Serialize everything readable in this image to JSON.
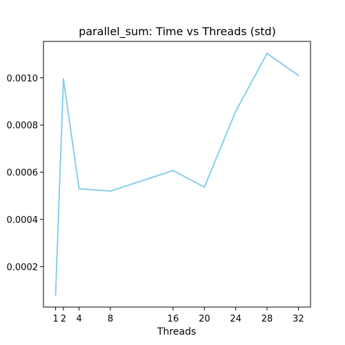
{
  "chart_data": {
    "type": "line",
    "title": "parallel_sum: Time vs Threads (std)",
    "xlabel": "Threads",
    "ylabel": "",
    "grid": false,
    "x": [
      1,
      2,
      4,
      8,
      16,
      20,
      24,
      28,
      32
    ],
    "series": [
      {
        "values": [
          8e-05,
          0.000995,
          0.00053,
          0.00052,
          0.000607,
          0.000537,
          0.000858,
          0.001103,
          0.00101
        ]
      }
    ],
    "xticks": [
      1,
      2,
      4,
      8,
      16,
      20,
      24,
      28,
      32
    ],
    "xtick_labels": [
      "1",
      "2",
      "4",
      "8",
      "16",
      "20",
      "24",
      "28",
      "32"
    ],
    "yticks": [
      0.0002,
      0.0004,
      0.0006,
      0.0008,
      0.001
    ],
    "ytick_labels": [
      "0.0002",
      "0.0004",
      "0.0006",
      "0.0008",
      "0.0010"
    ],
    "xlim": [
      -0.55,
      33.55
    ],
    "ylim": [
      2.88e-05,
      0.0011542
    ],
    "line_color": "#87ceeb"
  }
}
